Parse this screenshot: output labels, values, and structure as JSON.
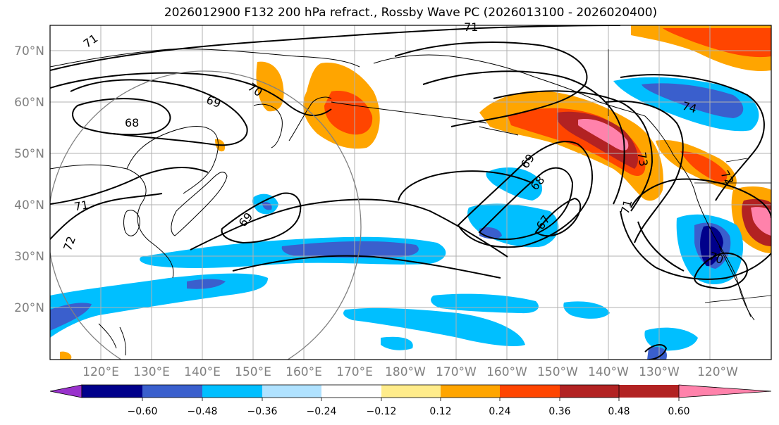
{
  "title": "2026012900 F132 200 hPa refract., Rossby Wave PC (2026013100 - 2026020400)",
  "lat_labels": [
    "70°N",
    "60°N",
    "50°N",
    "40°N",
    "30°N",
    "20°N"
  ],
  "lon_labels": [
    "120°E",
    "130°E",
    "140°E",
    "150°E",
    "160°E",
    "170°E",
    "180°W",
    "170°W",
    "160°W",
    "150°W",
    "140°W",
    "130°W",
    "120°W"
  ],
  "colorbar": {
    "ticks": [
      "−0.60",
      "−0.48",
      "−0.36",
      "−0.24",
      "−0.12",
      "0.12",
      "0.24",
      "0.36",
      "0.48",
      "0.60"
    ],
    "colors": [
      "#9932cc",
      "#00008b",
      "#3a5fcd",
      "#00bfff",
      "#b0e2ff",
      "#ffffff",
      "#ffec8b",
      "#ffa500",
      "#ff4500",
      "#b22222",
      "#ff82ab"
    ]
  },
  "contour_labels": [
    "71",
    "71",
    "70",
    "69",
    "68",
    "71",
    "72",
    "69",
    "69",
    "68",
    "67",
    "71",
    "73",
    "74",
    "72",
    "70"
  ],
  "colors": {
    "purple": "#9932cc",
    "navy": "#00008b",
    "royal_blue": "#3a5fcd",
    "sky": "#00bfff",
    "light_blue": "#b0e2ff",
    "yellow": "#ffec8b",
    "orange": "#ffa500",
    "red_orange": "#ff4500",
    "firebrick": "#b22222",
    "pink": "#ff82ab"
  }
}
